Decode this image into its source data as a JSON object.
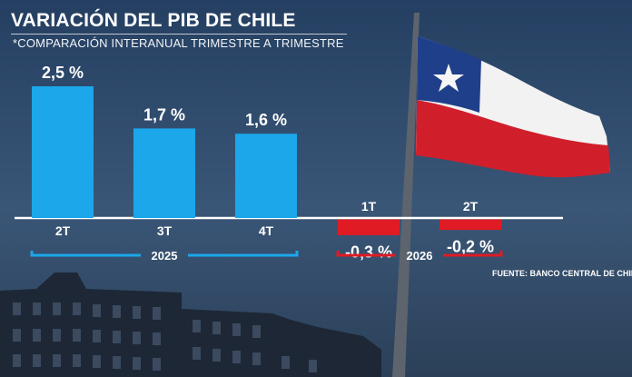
{
  "header": {
    "title": "VARIACIÓN DEL PIB DE CHILE",
    "subtitle": "*COMPARACIÓN INTERANUAL TRIMESTRE A TRIMESTRE"
  },
  "source": "FUENTE: BANCO CENTRAL DE CHILE",
  "colors": {
    "positive": "#1ba7ea",
    "negative": "#e01b24",
    "baseline": "#ffffff"
  },
  "chart_data": {
    "type": "bar",
    "title": "VARIACIÓN DEL PIB DE CHILE",
    "subtitle": "*COMPARACIÓN INTERANUAL TRIMESTRE A TRIMESTRE",
    "categories": [
      "2T",
      "3T",
      "4T",
      "1T",
      "2T"
    ],
    "values": [
      2.5,
      1.7,
      1.6,
      -0.3,
      -0.2
    ],
    "value_labels": [
      "2,5 %",
      "1,7 %",
      "1,6 %",
      "-0,3 %",
      "-0,2 %"
    ],
    "groups": [
      {
        "label": "2025",
        "categories": [
          0,
          1,
          2
        ]
      },
      {
        "label": "2026",
        "categories": [
          3,
          4
        ]
      }
    ],
    "xlabel": "",
    "ylabel": "",
    "ylim": [
      -0.3,
      2.5
    ],
    "grid": false,
    "legend": "none"
  }
}
